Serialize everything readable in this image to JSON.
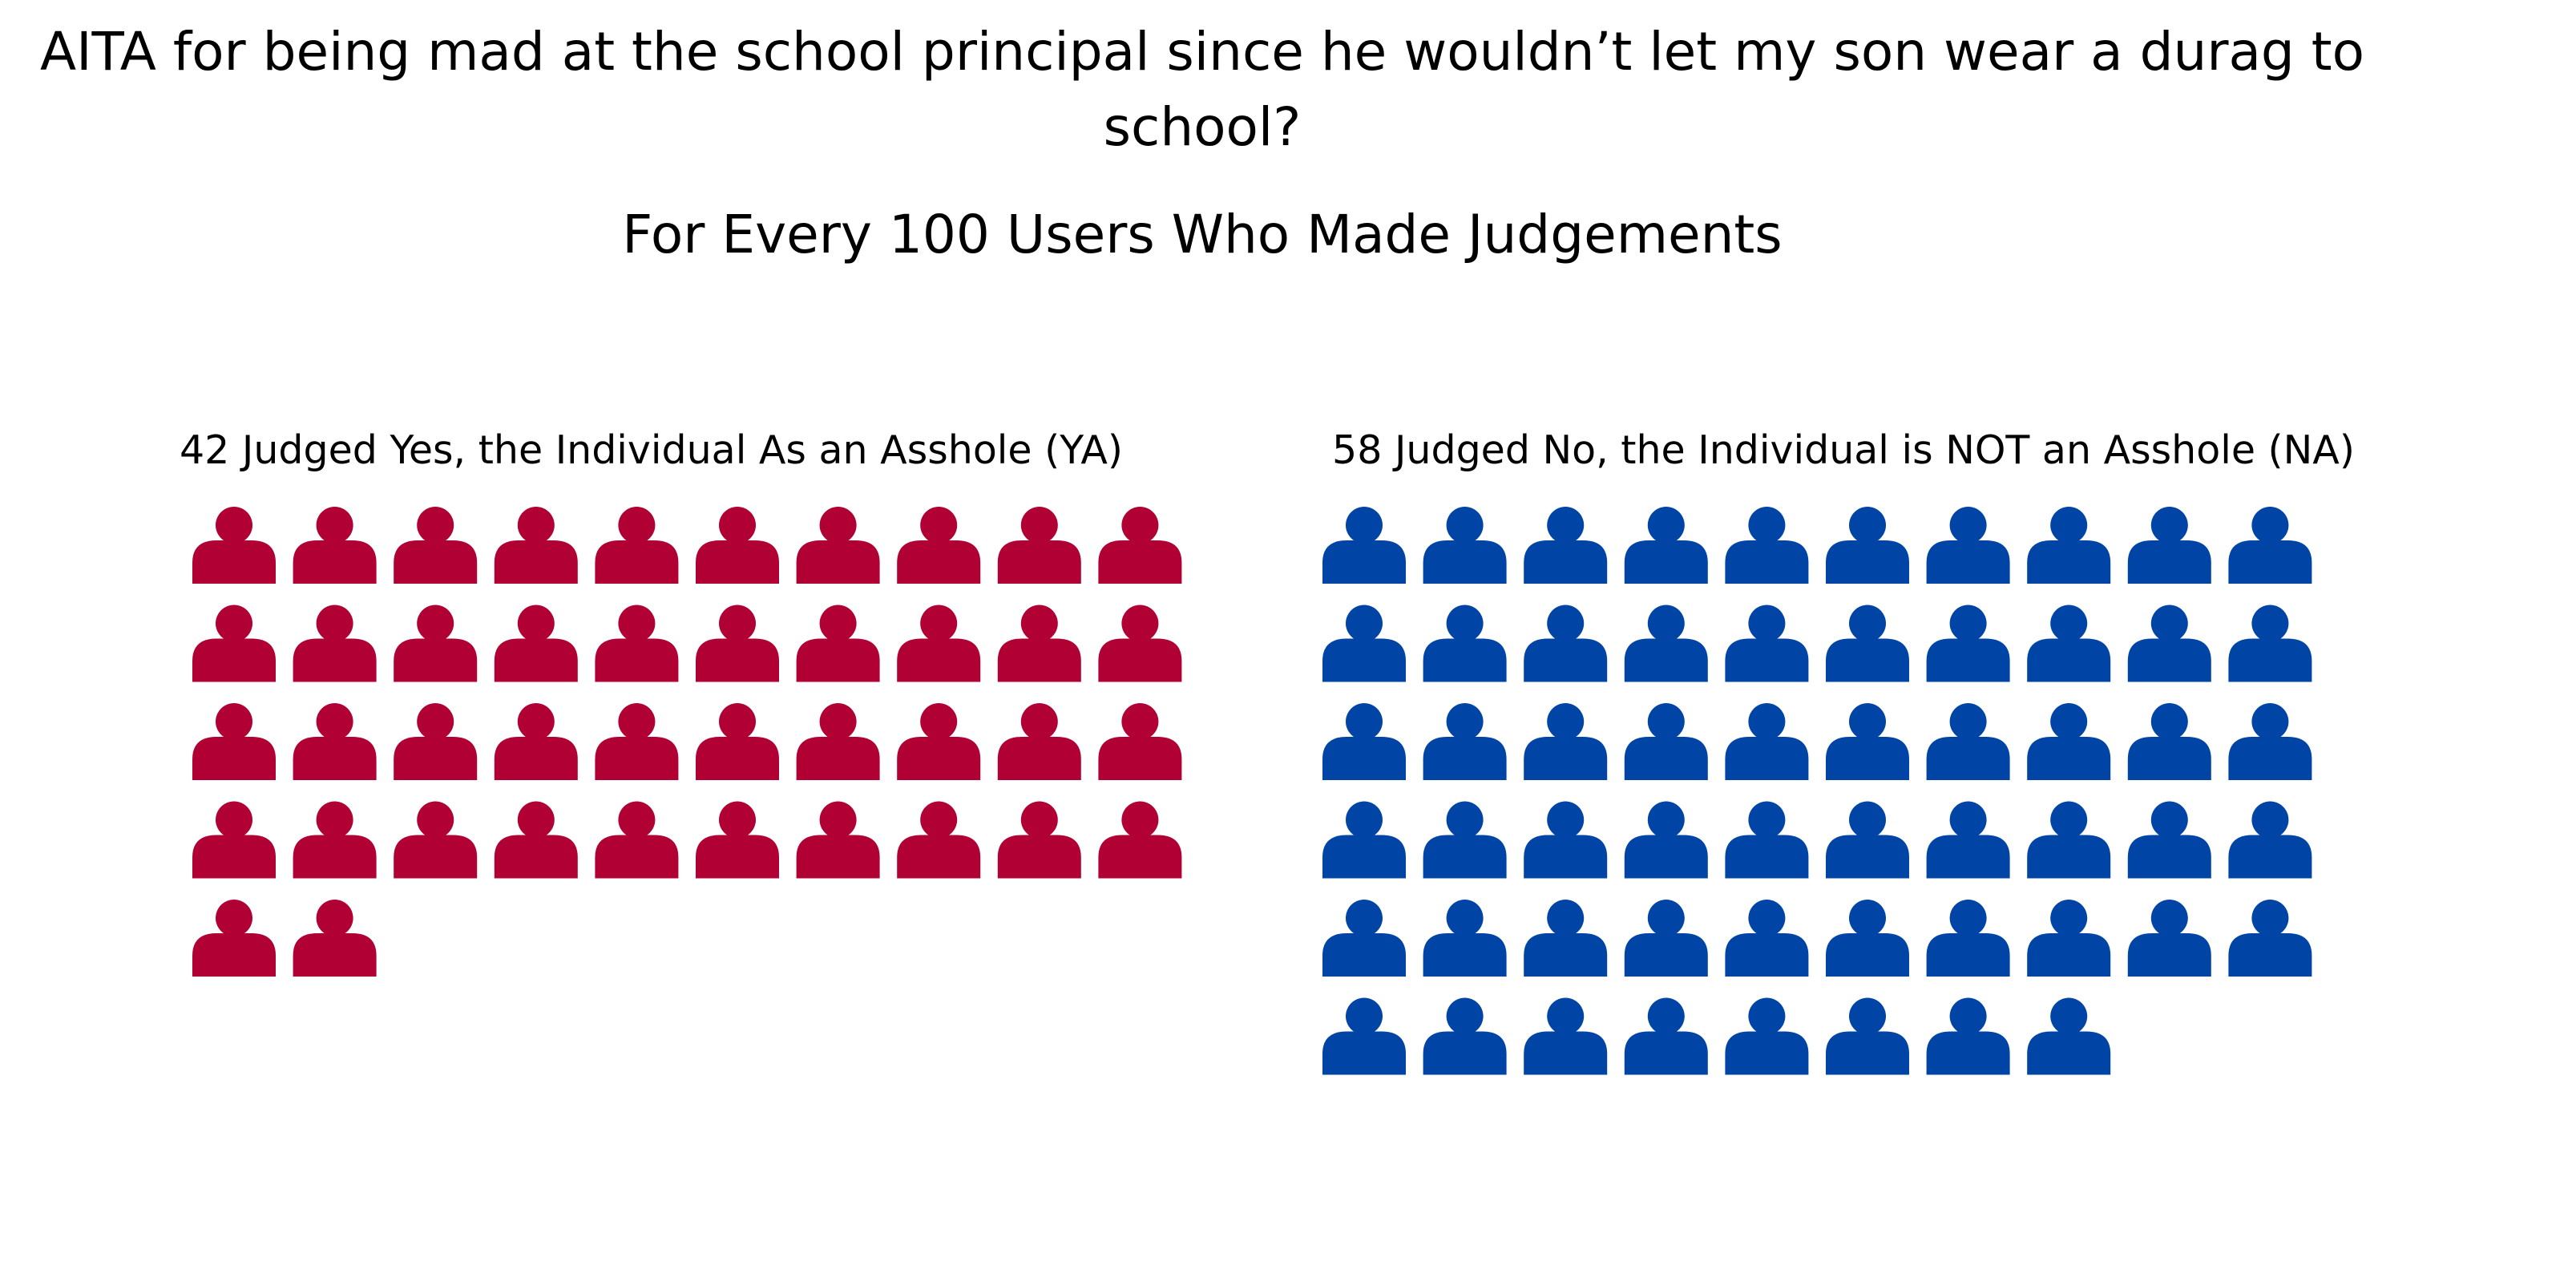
{
  "chart_data": {
    "type": "pictogram",
    "title": "AITA for being mad at the school principal since he wouldn’t let my son wear a durag to school?",
    "subtitle": "For Every 100 Users Who Made Judgements",
    "icon": "person-icon",
    "columns": 10,
    "groups": [
      {
        "key": "ya",
        "label": "42 Judged Yes, the Individual As an Asshole (YA)",
        "count": 42,
        "color": "#B00034"
      },
      {
        "key": "na",
        "label": "58 Judged No, the Individual is NOT an Asshole (NA)",
        "count": 58,
        "color": "#0044A6"
      }
    ]
  }
}
